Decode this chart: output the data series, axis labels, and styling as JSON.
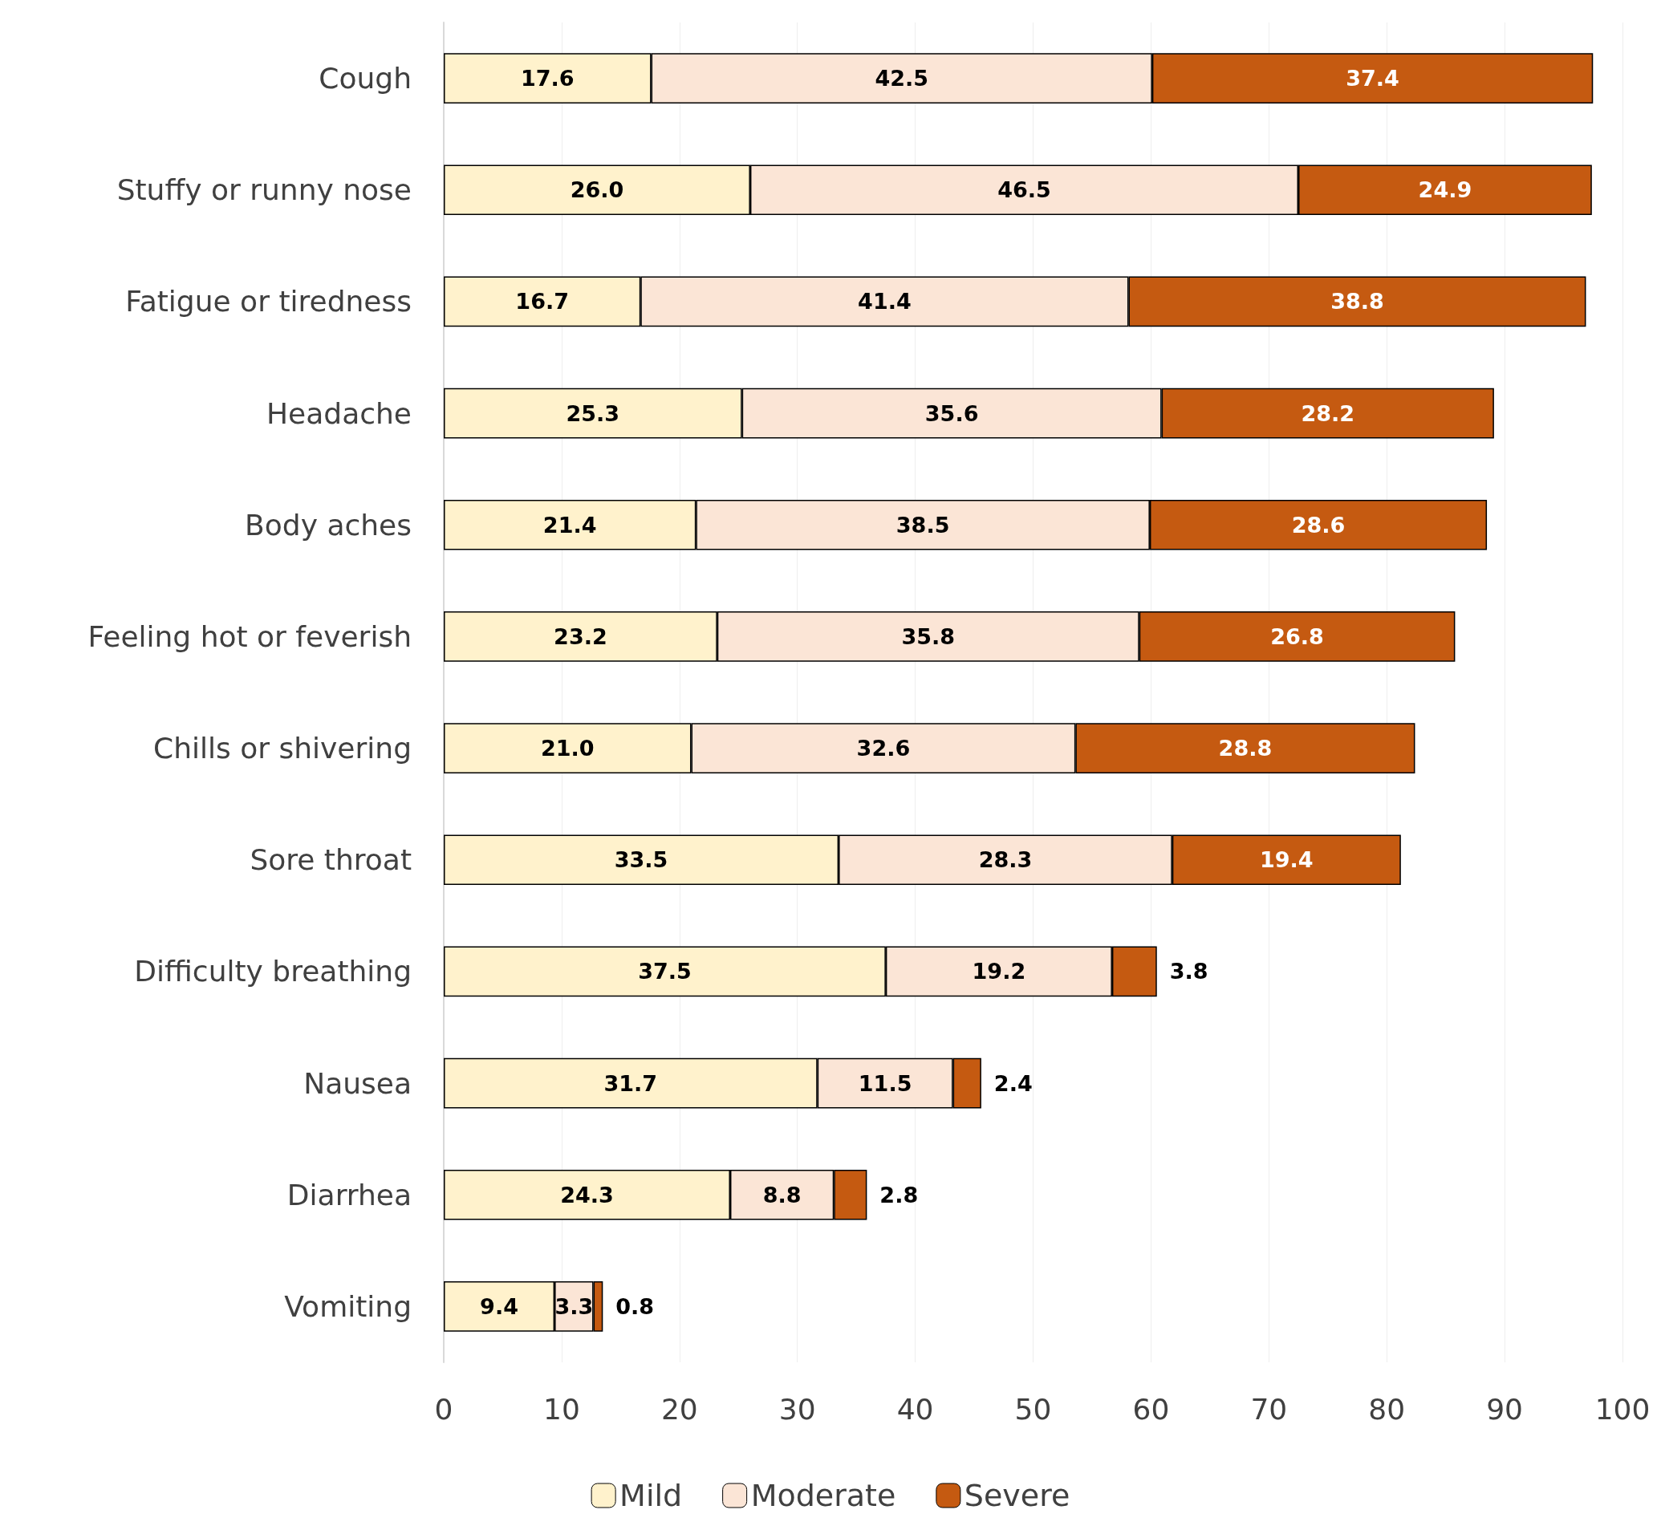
{
  "chart_data": {
    "type": "bar",
    "orientation": "horizontal",
    "stacked": true,
    "grid": "x",
    "legend": "bottom",
    "categories": [
      "Cough",
      "Stuffy or runny nose",
      "Fatigue or tiredness",
      "Headache",
      "Body aches",
      "Feeling hot or feverish",
      "Chills or shivering",
      "Sore throat",
      "Difficulty breathing",
      "Nausea",
      "Diarrhea",
      "Vomiting"
    ],
    "xlim": [
      0,
      100
    ],
    "xticks": [
      0,
      10,
      20,
      30,
      40,
      50,
      60,
      70,
      80,
      90,
      100
    ],
    "series": [
      {
        "name": "Mild",
        "color": "#fff2cc",
        "values": [
          17.6,
          26.0,
          16.7,
          25.3,
          21.4,
          23.2,
          21.0,
          33.5,
          37.5,
          31.7,
          24.3,
          9.4
        ],
        "value_labels": [
          "17.6",
          "26.0",
          "16.7",
          "25.3",
          "21.4",
          "23.2",
          "21.0",
          "33.5",
          "37.5",
          "31.7",
          "24.3",
          "9.4"
        ]
      },
      {
        "name": "Moderate",
        "color": "#fbe5d6",
        "values": [
          42.5,
          46.5,
          41.4,
          35.6,
          38.5,
          35.8,
          32.6,
          28.3,
          19.2,
          11.5,
          8.8,
          3.3
        ],
        "value_labels": [
          "42.5",
          "46.5",
          "41.4",
          "35.6",
          "38.5",
          "35.8",
          "32.6",
          "28.3",
          "19.2",
          "11.5",
          "8.8",
          "3.3"
        ]
      },
      {
        "name": "Severe",
        "color": "#c55a11",
        "values": [
          37.4,
          24.9,
          38.8,
          28.2,
          28.6,
          26.8,
          28.8,
          19.4,
          3.8,
          2.4,
          2.8,
          0.8
        ],
        "value_labels": [
          "37.4",
          "24.9",
          "38.8",
          "28.2",
          "28.6",
          "26.8",
          "28.8",
          "19.4",
          "3.8",
          "2.4",
          "2.8",
          "0.8"
        ]
      }
    ]
  }
}
